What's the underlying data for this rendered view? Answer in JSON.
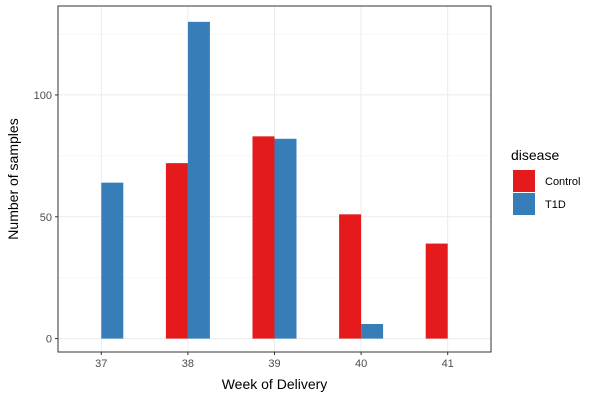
{
  "chart_data": {
    "type": "bar",
    "categories": [
      "37",
      "38",
      "39",
      "40",
      "41"
    ],
    "series": [
      {
        "name": "Control",
        "values": [
          0,
          72,
          83,
          51,
          39
        ],
        "color": "#E41A1C"
      },
      {
        "name": "T1D",
        "values": [
          64,
          130,
          82,
          6,
          0
        ],
        "color": "#377EB8"
      }
    ],
    "title": "",
    "xlabel": "Week of Delivery",
    "ylabel": "Number of samples",
    "ylim": [
      -5.5,
      136.5
    ],
    "yticks": [
      0,
      50,
      100
    ],
    "ytick_labels": [
      "0",
      "50",
      "100"
    ],
    "grid": true,
    "legend": {
      "title": "disease",
      "placement": "right",
      "entries": [
        "Control",
        "T1D"
      ]
    }
  }
}
